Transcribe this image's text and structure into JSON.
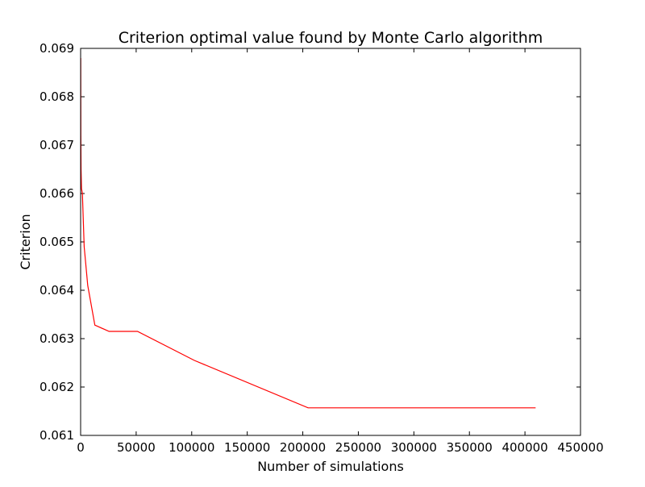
{
  "chart_data": {
    "type": "line",
    "title": "Criterion optimal value found by Monte Carlo algorithm",
    "xlabel": "Number of simulations",
    "ylabel": "Criterion",
    "xlim": [
      0,
      450000
    ],
    "ylim": [
      0.061,
      0.069
    ],
    "xticks": [
      "0",
      "50000",
      "100000",
      "150000",
      "200000",
      "250000",
      "300000",
      "350000",
      "400000",
      "450000"
    ],
    "yticks": [
      "0.061",
      "0.062",
      "0.063",
      "0.064",
      "0.065",
      "0.066",
      "0.067",
      "0.068",
      "0.069"
    ],
    "grid": false,
    "series": [
      {
        "color": "#ff0000",
        "x": [
          100,
          200,
          400,
          800,
          1600,
          3200,
          6400,
          12800,
          25600,
          51200,
          102400,
          204800,
          409600
        ],
        "y": [
          0.0688,
          0.0672,
          0.0665,
          0.0661,
          0.066,
          0.0649,
          0.0641,
          0.06328,
          0.06315,
          0.06315,
          0.06255,
          0.06157,
          0.06157
        ]
      }
    ]
  }
}
